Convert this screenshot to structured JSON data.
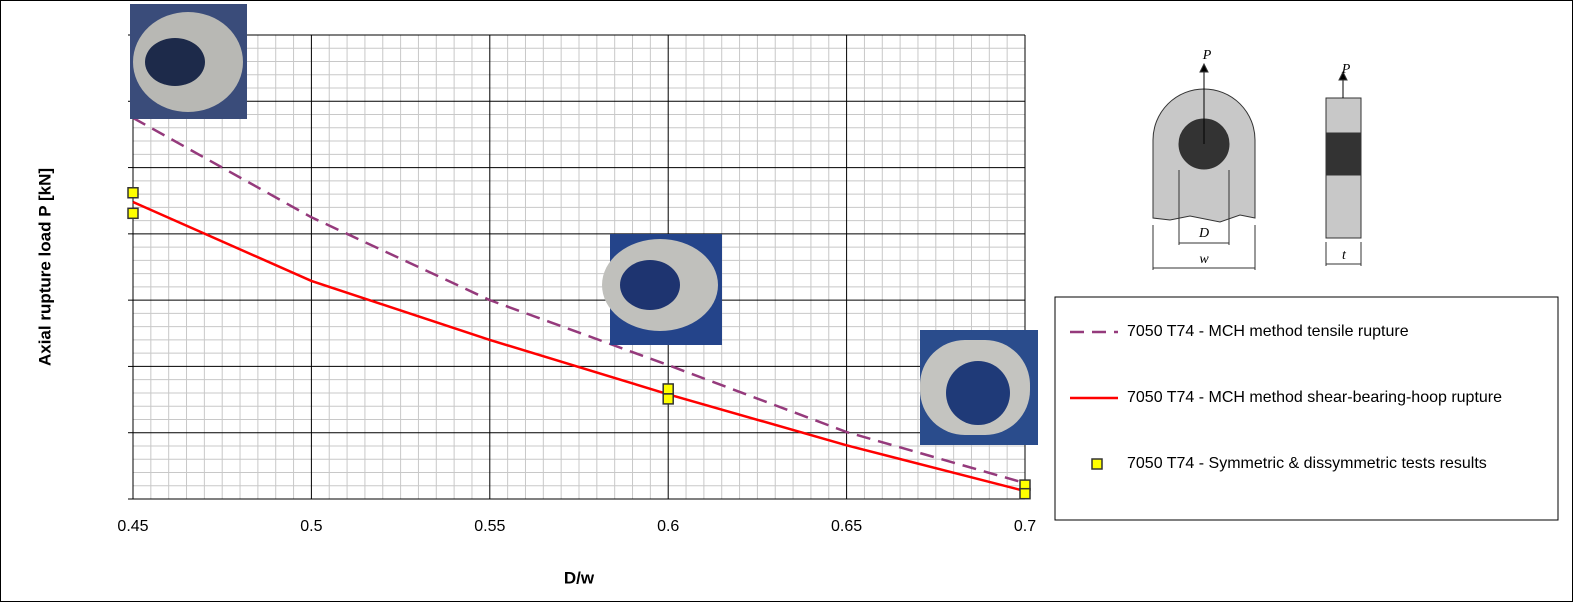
{
  "chart_data": {
    "type": "line",
    "x_label": "D/w",
    "y_label": "Axial rupture load P [kN]",
    "xlim": [
      0.45,
      0.7
    ],
    "xticks": [
      0.45,
      0.5,
      0.55,
      0.6,
      0.65,
      0.7
    ],
    "ylim": [
      0,
      7
    ],
    "yticks": [
      0,
      1,
      2,
      3,
      4,
      5,
      6,
      7
    ],
    "grid": true,
    "legend": "right",
    "series": [
      {
        "name": "7050 T74 - MCH method tensile rupture",
        "color": "#953a7c",
        "style": "dashed",
        "x": [
          0.45,
          0.5,
          0.55,
          0.6,
          0.65,
          0.7
        ],
        "values": [
          5.75,
          4.25,
          3.0,
          2.02,
          1.01,
          0.24
        ]
      },
      {
        "name": "7050 T74 - MCH method shear-bearing-hoop rupture",
        "color": "#ff0000",
        "style": "solid",
        "x": [
          0.45,
          0.5,
          0.55,
          0.6,
          0.65,
          0.7
        ],
        "values": [
          4.48,
          3.29,
          2.4,
          1.58,
          0.81,
          0.12
        ]
      },
      {
        "name": "7050 T74 - Symmetric & dissymmetric tests results",
        "color": "#ffff00",
        "style": "marker",
        "x": [
          0.45,
          0.45,
          0.6,
          0.6,
          0.7,
          0.7
        ],
        "values": [
          4.62,
          4.31,
          1.66,
          1.51,
          0.21,
          0.08
        ]
      }
    ]
  },
  "diagram": {
    "left_load": "P",
    "diameter": "D",
    "width": "w",
    "right_load": "P",
    "thickness": "t"
  }
}
